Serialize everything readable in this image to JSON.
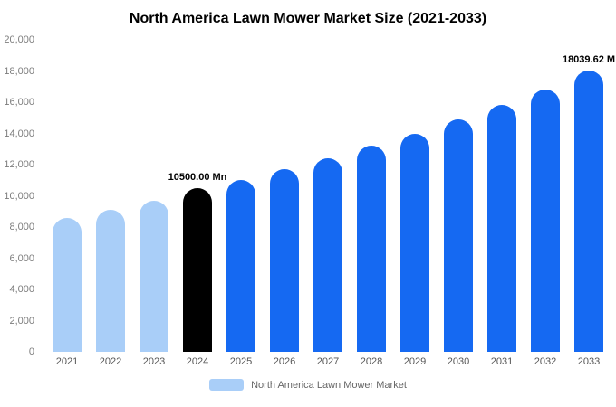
{
  "chart_data": {
    "type": "bar",
    "title": "North America Lawn Mower Market Size (2021-2033)",
    "categories": [
      "2021",
      "2022",
      "2023",
      "2024",
      "2025",
      "2026",
      "2027",
      "2028",
      "2029",
      "2030",
      "2031",
      "2032",
      "2033"
    ],
    "values": [
      8600,
      9100,
      9700,
      10500,
      11000,
      11700,
      12400,
      13200,
      14000,
      14900,
      15800,
      16800,
      18039.62
    ],
    "ylim": [
      0,
      20000
    ],
    "ytick_step": 2000,
    "yticks": [
      "0",
      "2,000",
      "4,000",
      "6,000",
      "8,000",
      "10,000",
      "12,000",
      "14,000",
      "16,000",
      "18,000",
      "20,000"
    ],
    "grid": false,
    "legend_position": "bottom",
    "palette": {
      "light_blue": "#A9CEF8",
      "black": "#000000",
      "blue": "#1569F2"
    },
    "bar_color_keys": [
      "light_blue",
      "light_blue",
      "light_blue",
      "black",
      "blue",
      "blue",
      "blue",
      "blue",
      "blue",
      "blue",
      "blue",
      "blue",
      "blue"
    ],
    "annotations": [
      {
        "index": 3,
        "text": "10500.00 Mn"
      },
      {
        "index": 12,
        "text": "18039.62 M"
      }
    ]
  },
  "legend": {
    "label": "North America Lawn Mower Market"
  }
}
